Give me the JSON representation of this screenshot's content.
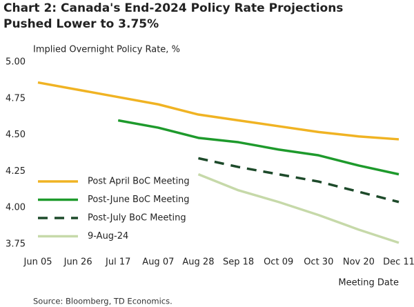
{
  "chart_data": {
    "type": "line",
    "title": [
      "Chart 2: Canada's End-2024 Policy Rate Projections",
      "Pushed Lower to 3.75%"
    ],
    "subtitle": "Implied Overnight Policy Rate, %",
    "x_label": "Meeting Date",
    "source": "Source: Bloomberg, TD Economics.",
    "categories": [
      "Jun 05",
      "Jun 26",
      "Jul 17",
      "Aug 07",
      "Aug 28",
      "Sep 18",
      "Oct 09",
      "Oct 30",
      "Nov 20",
      "Dec 11"
    ],
    "series": [
      {
        "name": "Post April BoC Meeting",
        "color": "#f0b323",
        "dashed": false,
        "values": [
          4.86,
          4.81,
          4.76,
          4.71,
          4.64,
          4.6,
          4.56,
          4.52,
          4.49,
          4.47
        ]
      },
      {
        "name": "Post-June BoC Meeting",
        "color": "#1e9a2c",
        "dashed": false,
        "values": [
          null,
          null,
          4.6,
          4.55,
          4.48,
          4.45,
          4.4,
          4.36,
          4.29,
          4.23
        ]
      },
      {
        "name": "Post-July BoC Meeting",
        "color": "#1d4a2a",
        "dashed": true,
        "values": [
          null,
          null,
          null,
          null,
          4.34,
          4.28,
          4.23,
          4.18,
          4.11,
          4.04
        ]
      },
      {
        "name": "9-Aug-24",
        "color": "#c6d9a9",
        "dashed": false,
        "values": [
          null,
          null,
          null,
          null,
          4.23,
          4.12,
          4.04,
          3.95,
          3.85,
          3.76
        ]
      }
    ],
    "ylim": [
      3.75,
      5.0
    ],
    "yticks": [
      {
        "value": 5.0,
        "label": "5.00"
      },
      {
        "value": 4.75,
        "label": "4.75"
      },
      {
        "value": 4.5,
        "label": "4.50"
      },
      {
        "value": 4.25,
        "label": "4.25"
      },
      {
        "value": 4.0,
        "label": "4.00"
      },
      {
        "value": 3.75,
        "label": "3.75"
      }
    ],
    "grid": false,
    "legend": "lower-left"
  }
}
